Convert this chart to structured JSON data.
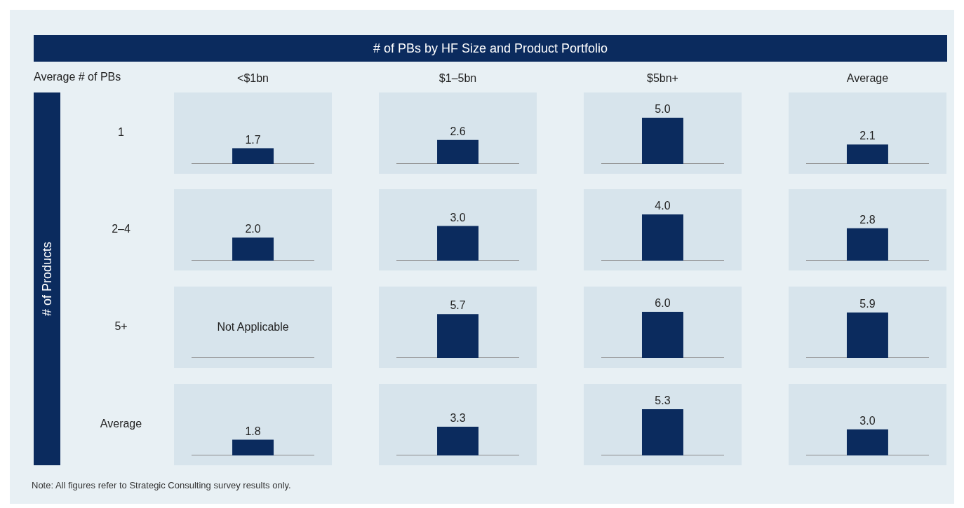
{
  "chart_data": [
    {
      "type": "other",
      "title": "# of PBs by HF Size and Product Portfolio",
      "annotations": [
        "Average # of PBs",
        "# of Products",
        "Note: All figures refer to Strategic Consulting survey results only."
      ]
    },
    {
      "type": "bar",
      "ylabel": "1",
      "categories": [
        "<$1bn",
        "$1–5bn",
        "$5bn+",
        "Average"
      ],
      "values": [
        1.7,
        2.6,
        5.0,
        2.1
      ],
      "value_labels": [
        "1.7",
        "2.6",
        "5.0",
        "2.1"
      ],
      "color": "#0b2b5e",
      "tick_labels": "x"
    },
    {
      "type": "bar",
      "ylabel": "2–4",
      "categories": [
        null,
        null,
        null,
        null
      ],
      "values": [
        2.0,
        3.0,
        4.0,
        2.8
      ],
      "value_labels": [
        "2.0",
        "3.0",
        "4.0",
        "2.8"
      ],
      "color": "#0b2b5e"
    },
    {
      "type": "bar",
      "ylabel": "5+",
      "categories": [
        null,
        null,
        null,
        null
      ],
      "values": [
        null,
        5.7,
        6.0,
        5.9
      ],
      "value_labels": [
        null,
        "5.7",
        "6.0",
        "5.9"
      ],
      "color": "#0b2b5e",
      "annotations": [
        "Not Applicable"
      ]
    },
    {
      "type": "bar",
      "ylabel": "Average",
      "categories": [
        null,
        null,
        null,
        null
      ],
      "values": [
        1.8,
        3.3,
        5.3,
        3.0
      ],
      "value_labels": [
        "1.8",
        "3.3",
        "5.3",
        "3.0"
      ],
      "color": "#0b2b5e"
    }
  ]
}
